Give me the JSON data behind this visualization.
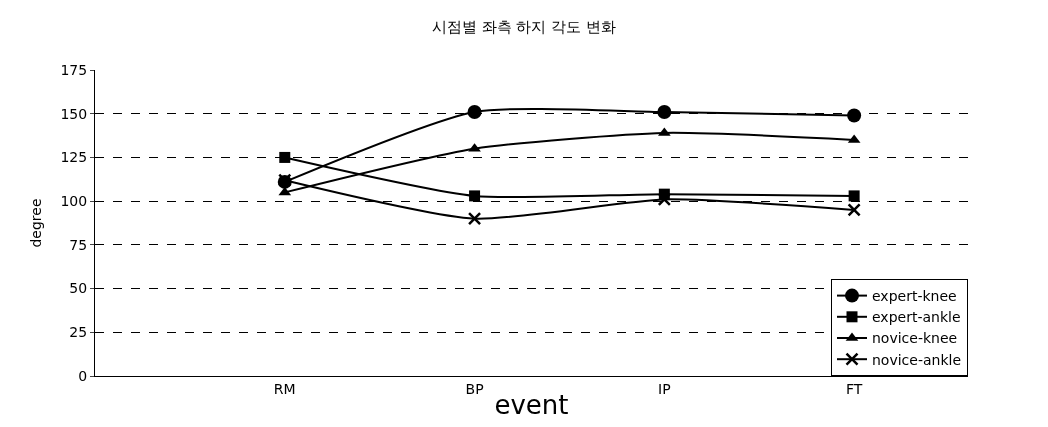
{
  "chart_data": {
    "type": "line",
    "title": "시점별 좌측 하지 각도 변화",
    "xlabel": "event",
    "ylabel": "degree",
    "categories": [
      "RM",
      "BP",
      "IP",
      "FT"
    ],
    "series": [
      {
        "name": "expert-knee",
        "color": "#000000",
        "marker": "circle",
        "values": [
          111,
          151,
          151,
          149
        ]
      },
      {
        "name": "expert-ankle",
        "color": "#000000",
        "marker": "square",
        "values": [
          125,
          103,
          104,
          103
        ]
      },
      {
        "name": "novice-knee",
        "color": "#000000",
        "marker": "triangle",
        "values": [
          105,
          130,
          139,
          135
        ]
      },
      {
        "name": "novice-ankle",
        "color": "#000000",
        "marker": "cross",
        "values": [
          112,
          90,
          101,
          95
        ]
      }
    ],
    "ylim": [
      0,
      175
    ],
    "yticks": [
      0,
      25,
      50,
      75,
      100,
      125,
      150,
      175
    ],
    "grid": "y",
    "legend": "bottom right",
    "line_style": "solid"
  }
}
